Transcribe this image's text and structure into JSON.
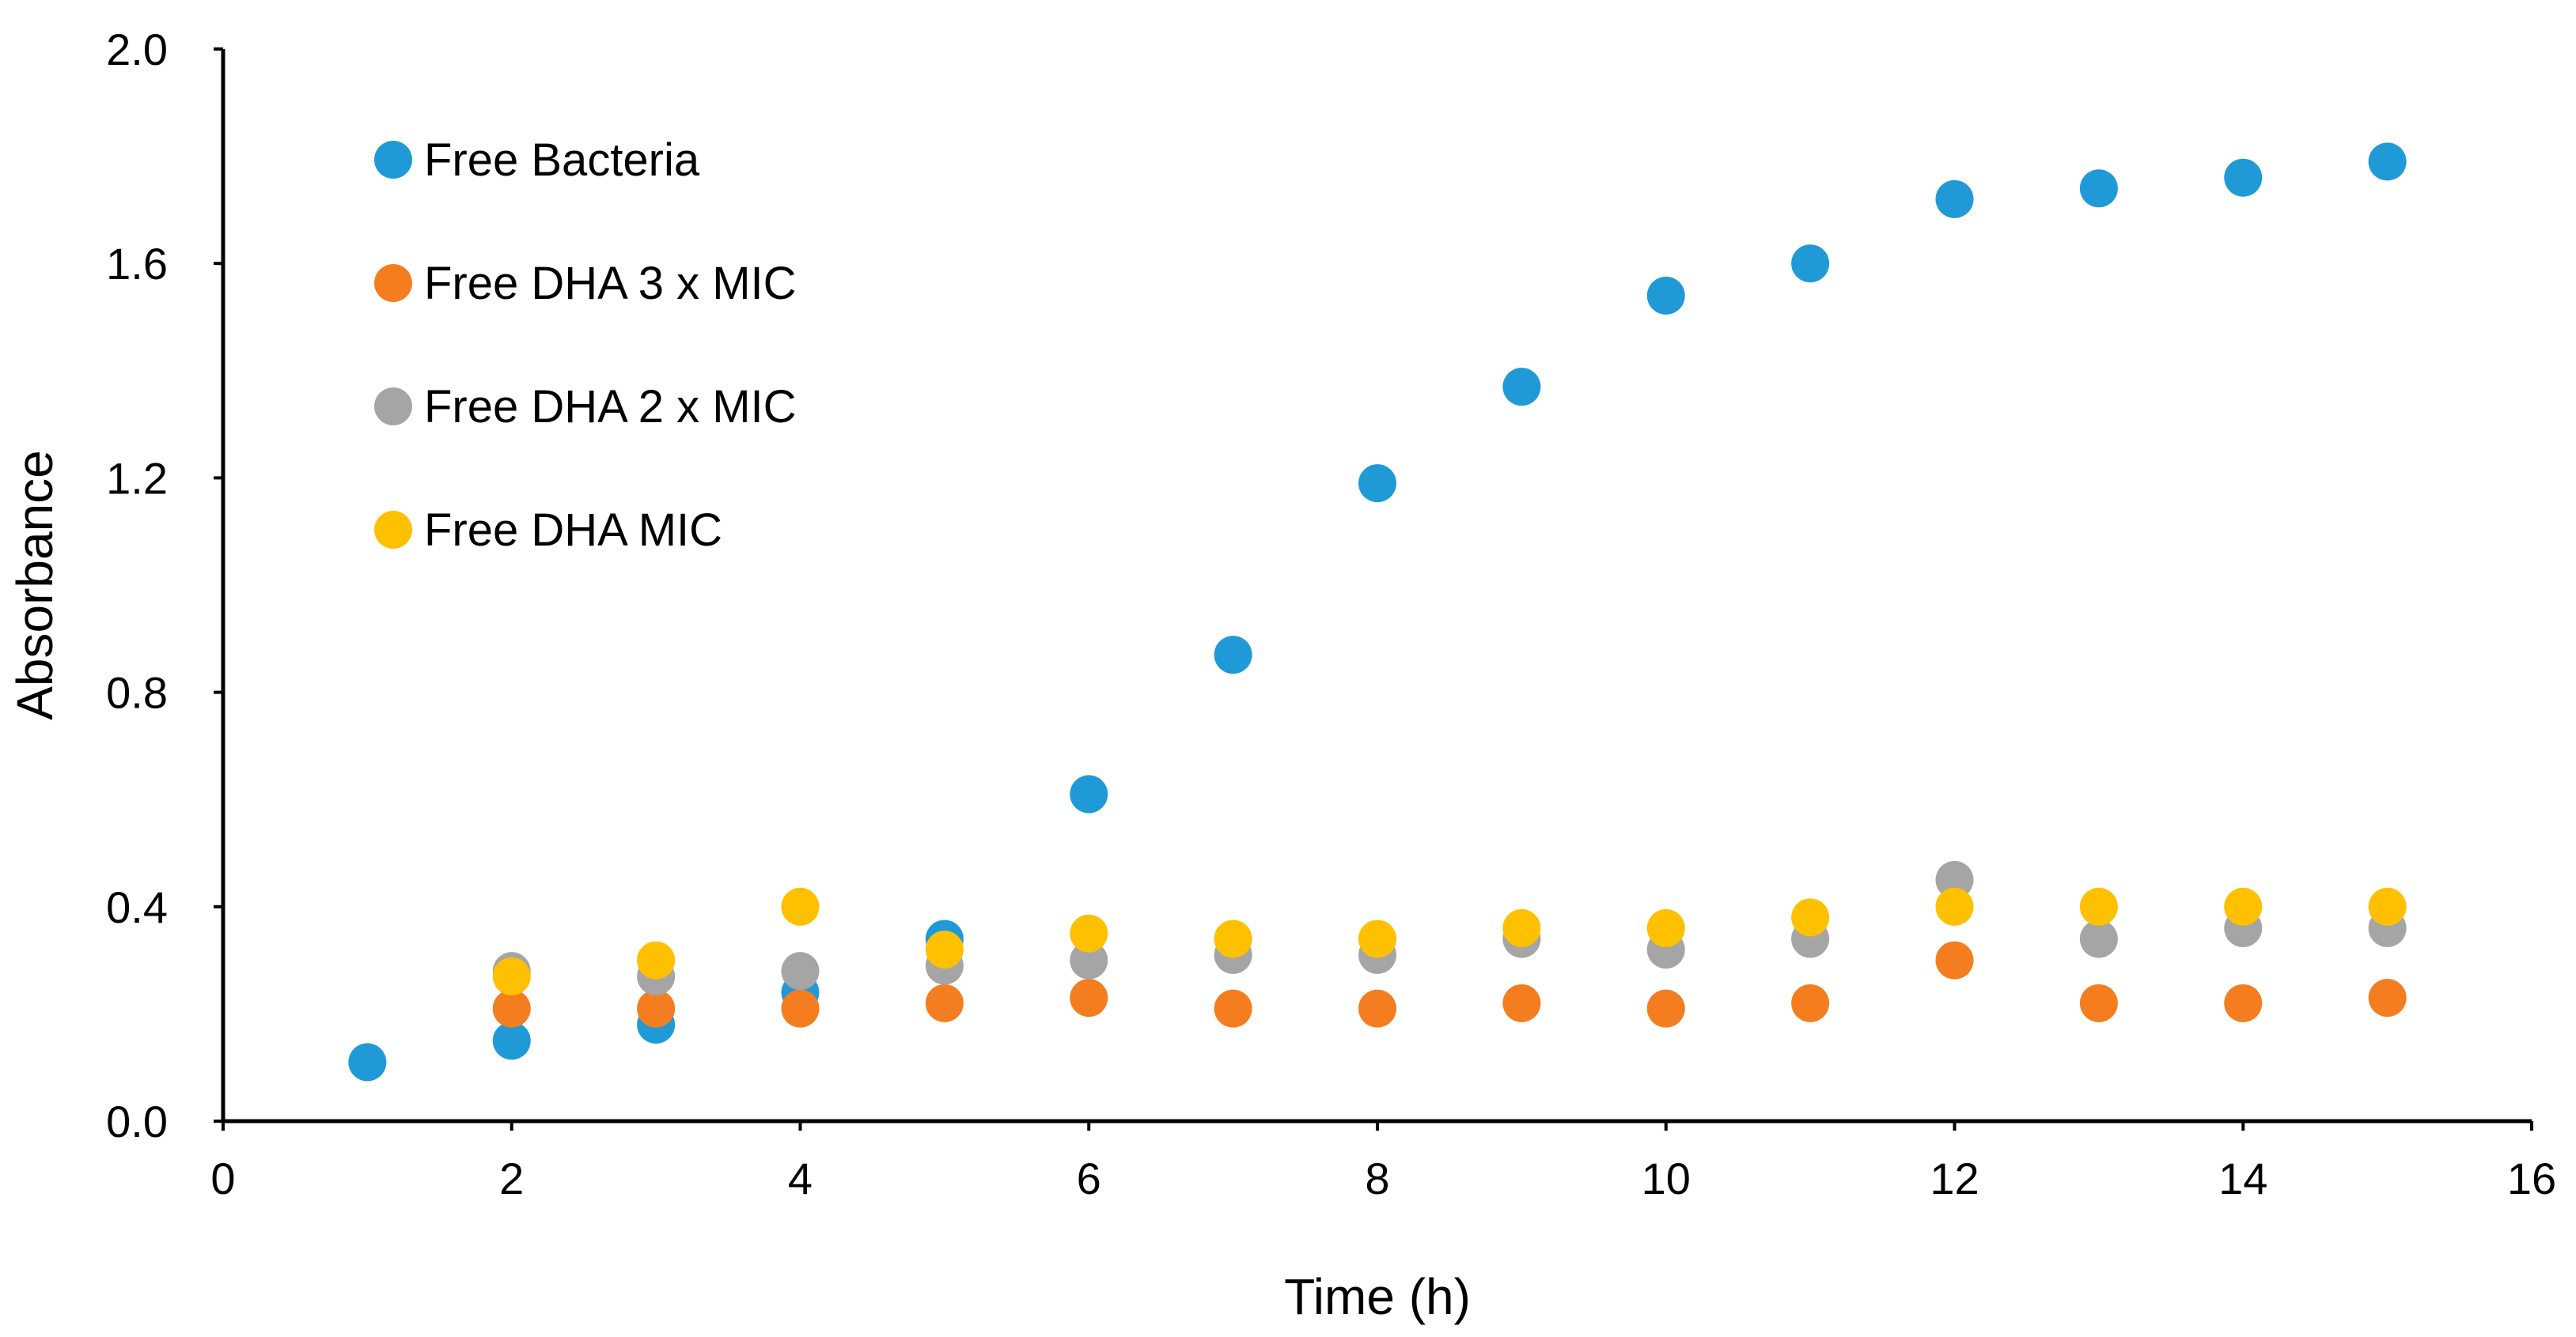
{
  "chart_data": {
    "type": "scatter",
    "title": "",
    "xlabel": "Time (h)",
    "ylabel": "Absorbance",
    "xlim": [
      0,
      16
    ],
    "ylim": [
      0,
      2.0
    ],
    "x_ticks": [
      0,
      2,
      4,
      6,
      8,
      10,
      12,
      14,
      16
    ],
    "x_tick_labels": [
      "0",
      "2",
      "4",
      "6",
      "8",
      "10",
      "12",
      "14",
      "16"
    ],
    "y_ticks": [
      0,
      0.4,
      0.8,
      1.2,
      1.6,
      2.0
    ],
    "y_tick_labels": [
      "0.0",
      "0.4",
      "0.8",
      "1.2",
      "1.6",
      "2.0"
    ],
    "grid": false,
    "legend_position": "top-left",
    "series": [
      {
        "name": "Free Bacteria",
        "color": "#1f9ad6",
        "x": [
          1,
          2,
          3,
          4,
          5,
          6,
          7,
          8,
          9,
          10,
          11,
          12,
          13,
          14,
          15
        ],
        "y": [
          0.11,
          0.15,
          0.18,
          0.24,
          0.34,
          0.61,
          0.87,
          1.19,
          1.37,
          1.54,
          1.6,
          1.72,
          1.74,
          1.76,
          1.79
        ]
      },
      {
        "name": "Free DHA 3 x MIC",
        "color": "#f47d20",
        "x": [
          2,
          3,
          4,
          5,
          6,
          7,
          8,
          9,
          10,
          11,
          12,
          13,
          14,
          15
        ],
        "y": [
          0.21,
          0.21,
          0.21,
          0.22,
          0.23,
          0.21,
          0.21,
          0.22,
          0.21,
          0.22,
          0.3,
          0.22,
          0.22,
          0.23
        ]
      },
      {
        "name": "Free DHA 2 x MIC",
        "color": "#a5a5a5",
        "x": [
          2,
          3,
          4,
          5,
          6,
          7,
          8,
          9,
          10,
          11,
          12,
          13,
          14,
          15
        ],
        "y": [
          0.28,
          0.27,
          0.28,
          0.29,
          0.3,
          0.31,
          0.31,
          0.34,
          0.32,
          0.34,
          0.45,
          0.34,
          0.36,
          0.36
        ]
      },
      {
        "name": "Free DHA MIC",
        "color": "#ffc000",
        "x": [
          2,
          3,
          4,
          5,
          6,
          7,
          8,
          9,
          10,
          11,
          12,
          13,
          14,
          15
        ],
        "y": [
          0.27,
          0.3,
          0.4,
          0.32,
          0.35,
          0.34,
          0.34,
          0.36,
          0.36,
          0.38,
          0.4,
          0.4,
          0.4,
          0.4
        ]
      }
    ]
  }
}
